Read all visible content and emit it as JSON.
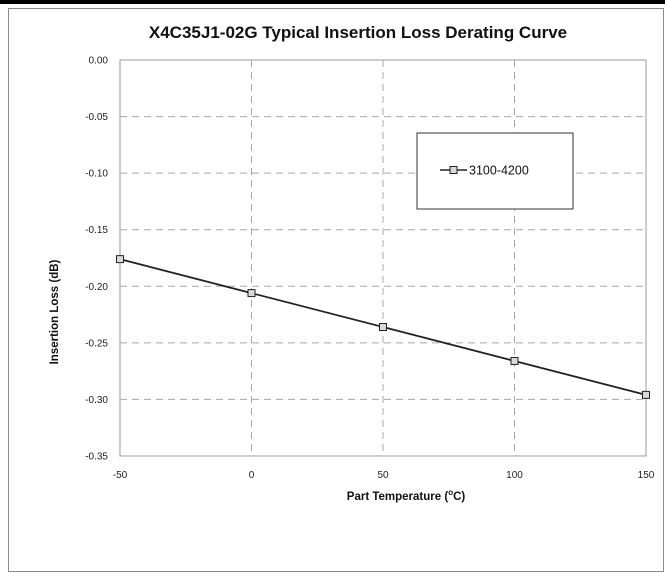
{
  "chart_data": {
    "type": "line",
    "title": "X4C35J1-02G Typical Insertion Loss Derating Curve",
    "xlabel_prefix": "Part Temperature (",
    "xlabel_sup": "o",
    "xlabel_suffix": "C)",
    "ylabel": "Insertion Loss (dB)",
    "xlim": [
      -50,
      150
    ],
    "ylim": [
      -0.35,
      0.0
    ],
    "x_ticks": [
      -50,
      0,
      50,
      100,
      150
    ],
    "x_tick_labels": [
      "-50",
      "0",
      "50",
      "100",
      "150"
    ],
    "y_ticks": [
      0.0,
      -0.05,
      -0.1,
      -0.15,
      -0.2,
      -0.25,
      -0.3,
      -0.35
    ],
    "y_tick_labels": [
      "0.00",
      "-0.05",
      "-0.10",
      "-0.15",
      "-0.20",
      "-0.25",
      "-0.30",
      "-0.35"
    ],
    "grid": true,
    "legend_position": "top-right",
    "series": [
      {
        "name": "3100-4200",
        "x": [
          -50,
          0,
          50,
          100,
          150
        ],
        "values": [
          -0.176,
          -0.206,
          -0.236,
          -0.266,
          -0.296
        ],
        "color": "#222222",
        "marker": "square"
      }
    ]
  }
}
